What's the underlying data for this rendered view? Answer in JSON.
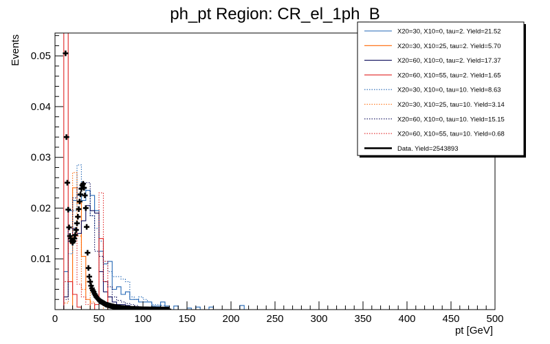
{
  "chart_data": {
    "type": "histogram",
    "title": "ph_pt Region: CR_el_1ph_B",
    "xlabel": "pt [GeV]",
    "ylabel": "Events",
    "xlim": [
      0,
      500
    ],
    "ylim": [
      0,
      0.0545
    ],
    "bin_width": 5,
    "x_ticks": [
      0,
      50,
      100,
      150,
      200,
      250,
      300,
      350,
      400,
      450,
      500
    ],
    "x_tick_labels": [
      "0",
      "50",
      "100",
      "150",
      "200",
      "250",
      "300",
      "350",
      "400",
      "450",
      "500"
    ],
    "y_ticks": [
      0.01,
      0.02,
      0.03,
      0.04,
      0.05
    ],
    "y_tick_labels": [
      "0.01",
      "0.02",
      "0.03",
      "0.04",
      "0.05"
    ],
    "legend_position": "top-right",
    "grid": false,
    "series": [
      {
        "name": "X20=30, X10=0, tau=2. Yield=21.52",
        "color": "#1f64b4",
        "dashed": false,
        "bins": [
          [
            10,
            15,
            0.0075
          ],
          [
            15,
            20,
            0.0195
          ],
          [
            20,
            25,
            0.0215
          ],
          [
            25,
            30,
            0.0225
          ],
          [
            30,
            35,
            0.0215
          ],
          [
            35,
            40,
            0.0235
          ],
          [
            40,
            45,
            0.0225
          ],
          [
            45,
            50,
            0.0195
          ],
          [
            50,
            55,
            0.0115
          ],
          [
            55,
            60,
            0.009
          ],
          [
            60,
            65,
            0.0095
          ],
          [
            65,
            70,
            0.004
          ],
          [
            70,
            75,
            0.0045
          ],
          [
            75,
            80,
            0.003
          ],
          [
            80,
            85,
            0.0035
          ],
          [
            85,
            90,
            0.002
          ],
          [
            90,
            95,
            0.002
          ],
          [
            95,
            100,
            0.0015
          ],
          [
            100,
            105,
            0.0015
          ],
          [
            105,
            110,
            0.0015
          ],
          [
            110,
            115,
            0.0007
          ],
          [
            115,
            120,
            0.0007
          ],
          [
            120,
            125,
            0.0015
          ],
          [
            125,
            130,
            0.0007
          ],
          [
            135,
            140,
            0.0007
          ],
          [
            150,
            155,
            0.0003
          ],
          [
            160,
            165,
            0.0005
          ],
          [
            175,
            180,
            0.0005
          ],
          [
            210,
            215,
            0.0008
          ]
        ]
      },
      {
        "name": "X20=30, X10=25, tau=2. Yield=5.70",
        "color": "#ff6600",
        "dashed": false,
        "bins": [
          [
            15,
            20,
            0.0
          ],
          [
            20,
            25,
            0.024
          ],
          [
            25,
            30,
            0.021
          ],
          [
            30,
            35,
            0.0105
          ],
          [
            35,
            40,
            0.002
          ]
        ]
      },
      {
        "name": "X20=60, X10=0, tau=2. Yield=17.37",
        "color": "#0a0a5a",
        "dashed": false,
        "bins": [
          [
            10,
            15,
            0.0025
          ],
          [
            15,
            20,
            0.0145
          ],
          [
            20,
            25,
            0.016
          ],
          [
            25,
            30,
            0.015
          ],
          [
            30,
            35,
            0.0175
          ],
          [
            35,
            40,
            0.0205
          ],
          [
            40,
            45,
            0.0195
          ],
          [
            45,
            50,
            0.019
          ],
          [
            50,
            55,
            0.0075
          ],
          [
            55,
            60,
            0.0035
          ],
          [
            60,
            65,
            0.0025
          ],
          [
            65,
            70,
            0.0015
          ],
          [
            70,
            75,
            0.001
          ],
          [
            75,
            80,
            0.001
          ],
          [
            80,
            85,
            0.0008
          ],
          [
            85,
            90,
            0.0005
          ],
          [
            90,
            95,
            0.0005
          ],
          [
            95,
            100,
            0.0003
          ],
          [
            100,
            105,
            0.0003
          ]
        ]
      },
      {
        "name": "X20=60, X10=55, tau=2. Yield=1.65",
        "color": "#e02020",
        "dashed": false,
        "bins": [
          [
            10,
            15,
            0.061
          ],
          [
            15,
            20,
            0.0055
          ],
          [
            20,
            25,
            0.003
          ],
          [
            25,
            30,
            0.0005
          ],
          [
            45,
            50,
            0.001
          ],
          [
            50,
            55,
            0.014
          ],
          [
            55,
            60,
            0.0055
          ],
          [
            60,
            65,
            0.0
          ]
        ]
      },
      {
        "name": "X20=30, X10=0, tau=10. Yield=8.63",
        "color": "#1f64b4",
        "dashed": true,
        "bins": [
          [
            10,
            15,
            0.0055
          ],
          [
            15,
            20,
            0.011
          ],
          [
            20,
            25,
            0.0195
          ],
          [
            25,
            30,
            0.0285
          ],
          [
            30,
            35,
            0.024
          ],
          [
            35,
            40,
            0.0235
          ],
          [
            40,
            45,
            0.0185
          ],
          [
            45,
            50,
            0.016
          ],
          [
            50,
            55,
            0.0135
          ],
          [
            55,
            60,
            0.0095
          ],
          [
            60,
            65,
            0.0075
          ],
          [
            65,
            70,
            0.0065
          ],
          [
            70,
            75,
            0.0065
          ],
          [
            75,
            80,
            0.006
          ],
          [
            80,
            85,
            0.0055
          ],
          [
            85,
            90,
            0.0025
          ],
          [
            90,
            95,
            0.002
          ],
          [
            95,
            100,
            0.0025
          ],
          [
            100,
            105,
            0.002
          ],
          [
            105,
            110,
            0.0015
          ],
          [
            110,
            115,
            0.001
          ],
          [
            115,
            120,
            0.001
          ],
          [
            120,
            125,
            0.0008
          ]
        ]
      },
      {
        "name": "X20=30, X10=25, tau=10. Yield=3.14",
        "color": "#ff6600",
        "dashed": true,
        "bins": [
          [
            10,
            15,
            0.0013
          ],
          [
            15,
            20,
            0.013
          ],
          [
            20,
            25,
            0.027
          ],
          [
            25,
            30,
            0.0145
          ],
          [
            30,
            35,
            0.004
          ],
          [
            35,
            40,
            0.0055
          ],
          [
            40,
            45,
            0.0015
          ],
          [
            45,
            50,
            0.0
          ],
          [
            50,
            55,
            0.0
          ],
          [
            55,
            60,
            0.001
          ]
        ]
      },
      {
        "name": "X20=60, X10=0, tau=10. Yield=15.15",
        "color": "#0a0a5a",
        "dashed": true,
        "bins": [
          [
            10,
            15,
            0.002
          ],
          [
            15,
            20,
            0.016
          ],
          [
            20,
            25,
            0.022
          ],
          [
            25,
            30,
            0.024
          ],
          [
            30,
            35,
            0.025
          ],
          [
            35,
            40,
            0.025
          ],
          [
            40,
            45,
            0.0185
          ],
          [
            45,
            50,
            0.0115
          ],
          [
            50,
            55,
            0.0105
          ],
          [
            55,
            60,
            0.0055
          ],
          [
            60,
            65,
            0.0045
          ],
          [
            65,
            70,
            0.0025
          ],
          [
            70,
            75,
            0.0018
          ],
          [
            75,
            80,
            0.0015
          ],
          [
            80,
            85,
            0.0012
          ],
          [
            85,
            90,
            0.001
          ],
          [
            90,
            95,
            0.0008
          ],
          [
            95,
            100,
            0.0005
          ]
        ]
      },
      {
        "name": "X20=60, X10=55, tau=10. Yield=0.68",
        "color": "#e02020",
        "dashed": true,
        "bins": [
          [
            10,
            15,
            0.0055
          ],
          [
            15,
            20,
            0.013
          ],
          [
            20,
            25,
            0.015
          ],
          [
            25,
            30,
            0.005
          ],
          [
            30,
            35,
            0.0025
          ],
          [
            35,
            40,
            0.001
          ],
          [
            40,
            45,
            0.0012
          ],
          [
            45,
            50,
            0.0
          ],
          [
            50,
            55,
            0.023
          ],
          [
            55,
            60,
            0.0095
          ],
          [
            60,
            65,
            0.0
          ]
        ]
      },
      {
        "name": "Data. Yield=2543893",
        "color": "#000000",
        "type": "points",
        "x": [
          12,
          13,
          14,
          15,
          16,
          17,
          18,
          19,
          20,
          21,
          22,
          23,
          24,
          25,
          26,
          27,
          28,
          29,
          30,
          31,
          32,
          33,
          34,
          35,
          36,
          37,
          38,
          39,
          40,
          41,
          42,
          43,
          44,
          45,
          46,
          47,
          48,
          49,
          50,
          51,
          52,
          53,
          54,
          55,
          56,
          57,
          58,
          59,
          60,
          61,
          62,
          63,
          64,
          65,
          66,
          67,
          68,
          69,
          70,
          71,
          72,
          73,
          74,
          75,
          76,
          77,
          78,
          79,
          80,
          81,
          82,
          83,
          84,
          85,
          86,
          87,
          88,
          89,
          90,
          91,
          92,
          93,
          94,
          95,
          96,
          97,
          98,
          99,
          100,
          101,
          102,
          103,
          104,
          105,
          106,
          107,
          108,
          109,
          110,
          111,
          112,
          113,
          114,
          115,
          116,
          117,
          118,
          119,
          120,
          121,
          122,
          123,
          124,
          125,
          126,
          127,
          128,
          129
        ],
        "y": [
          0.0505,
          0.034,
          0.025,
          0.0197,
          0.0162,
          0.0145,
          0.014,
          0.0135,
          0.0132,
          0.0135,
          0.014,
          0.0147,
          0.0157,
          0.017,
          0.0183,
          0.0198,
          0.0213,
          0.0227,
          0.0238,
          0.0245,
          0.0248,
          0.024,
          0.0225,
          0.02,
          0.0163,
          0.0112,
          0.0082,
          0.0065,
          0.0055,
          0.0047,
          0.0042,
          0.0038,
          0.0035,
          0.0031,
          0.0028,
          0.0025,
          0.0023,
          0.0021,
          0.0019,
          0.0017,
          0.0016,
          0.0015,
          0.0014,
          0.0013,
          0.0012,
          0.0011,
          0.001,
          0.00095,
          0.0009,
          0.00085,
          0.0008,
          0.00075,
          0.0007,
          0.00066,
          0.00062,
          0.00058,
          0.00055,
          0.00052,
          0.00049,
          0.00046,
          0.00043,
          0.0004,
          0.00038,
          0.00036,
          0.00034,
          0.00032,
          0.0003,
          0.00028,
          0.00026,
          0.00024,
          0.00022,
          0.0002,
          0.00019,
          0.00018,
          0.00017,
          0.00016,
          0.00015,
          0.00014,
          0.00013,
          0.00012,
          0.00011,
          0.0001,
          0.0001,
          9e-05,
          9e-05,
          8e-05,
          8e-05,
          7e-05,
          7e-05,
          6e-05,
          6e-05,
          6e-05,
          5e-05,
          5e-05,
          5e-05,
          4e-05,
          4e-05,
          4e-05,
          3e-05,
          3e-05,
          3e-05,
          3e-05,
          3e-05,
          2e-05,
          2e-05,
          2e-05,
          2e-05,
          2e-05,
          2e-05,
          2e-05,
          1e-05,
          1e-05,
          1e-05,
          1e-05,
          1e-05,
          1e-05,
          1e-05,
          1e-05
        ]
      }
    ]
  }
}
